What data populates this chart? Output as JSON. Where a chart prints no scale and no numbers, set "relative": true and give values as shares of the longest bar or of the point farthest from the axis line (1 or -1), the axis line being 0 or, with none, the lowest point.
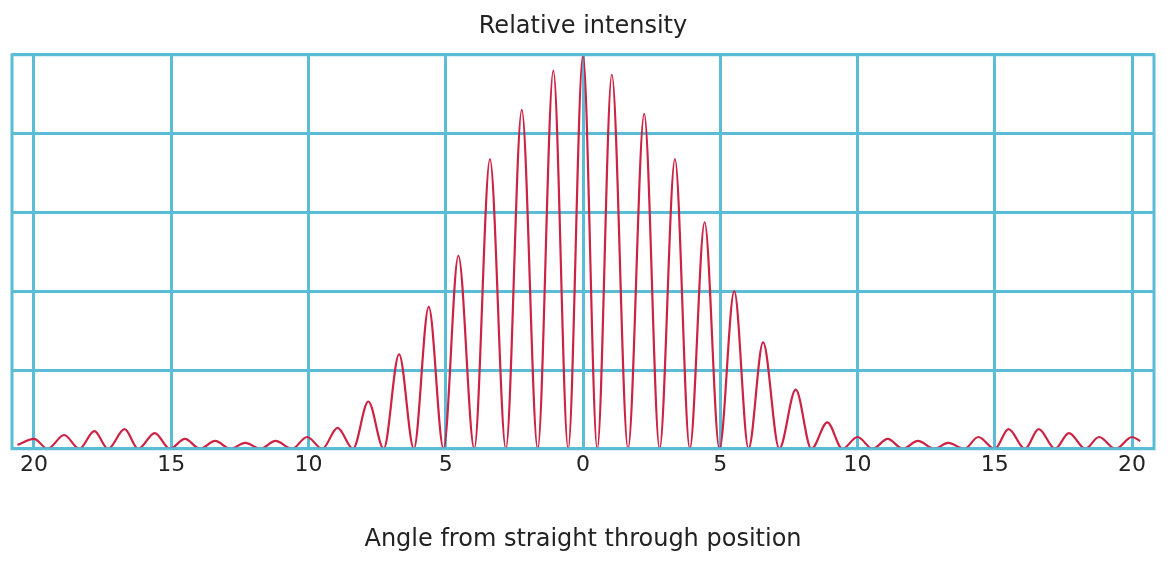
{
  "chart_data": {
    "type": "line",
    "title": "Relative intensity",
    "xlabel": "Angle from straight through position",
    "relative": true,
    "grid": true,
    "marker": "none",
    "line_style": "solid",
    "xlim": [
      -20.8,
      20.8
    ],
    "xticks": [
      {
        "value": -20,
        "label": "20"
      },
      {
        "value": -15,
        "label": "15"
      },
      {
        "value": -10,
        "label": "10"
      },
      {
        "value": -5,
        "label": "5"
      },
      0,
      5,
      10,
      15,
      20
    ],
    "series": [
      {
        "color": "#cc2244",
        "x": [
          -20.6,
          -20.0,
          -19.5,
          -18.9,
          -18.35,
          -17.8,
          -17.3,
          -16.7,
          -16.2,
          -15.6,
          -15.05,
          -14.5,
          -13.95,
          -13.4,
          -12.85,
          -12.3,
          -11.75,
          -11.2,
          -10.6,
          -10.05,
          -9.5,
          -8.94,
          -8.38,
          -7.82,
          -7.26,
          -6.7,
          -6.16,
          -5.62,
          -5.08,
          -4.54,
          -3.96,
          -3.39,
          -2.81,
          -2.23,
          -1.65,
          -1.08,
          -0.54,
          0,
          0.52,
          1.05,
          1.64,
          2.23,
          2.79,
          3.35,
          3.89,
          4.43,
          4.97,
          5.51,
          6.03,
          6.56,
          7.15,
          7.75,
          8.32,
          8.9,
          9.45,
          10.0,
          10.55,
          11.1,
          11.65,
          12.2,
          12.8,
          13.3,
          13.9,
          14.4,
          15.0,
          15.5,
          16.1,
          16.6,
          17.2,
          17.7,
          18.3,
          18.8,
          19.4,
          20.0,
          20.3
        ],
        "values": [
          0.01,
          0.025,
          0,
          0.035,
          0,
          0.045,
          0,
          0.05,
          0,
          0.04,
          0,
          0.025,
          0,
          0.02,
          0,
          0.015,
          0,
          0.02,
          0,
          0.03,
          0,
          0.053,
          0,
          0.12,
          0,
          0.24,
          0,
          0.36,
          0,
          0.49,
          0,
          0.735,
          0,
          0.86,
          0,
          0.96,
          0,
          1,
          0,
          0.95,
          0,
          0.85,
          0,
          0.735,
          0,
          0.575,
          0,
          0.4,
          0,
          0.27,
          0,
          0.15,
          0,
          0.067,
          0,
          0.03,
          0,
          0.025,
          0,
          0.02,
          0,
          0.015,
          0,
          0.03,
          0,
          0.05,
          0,
          0.05,
          0,
          0.04,
          0,
          0.03,
          0,
          0.03,
          0.02
        ]
      }
    ]
  }
}
